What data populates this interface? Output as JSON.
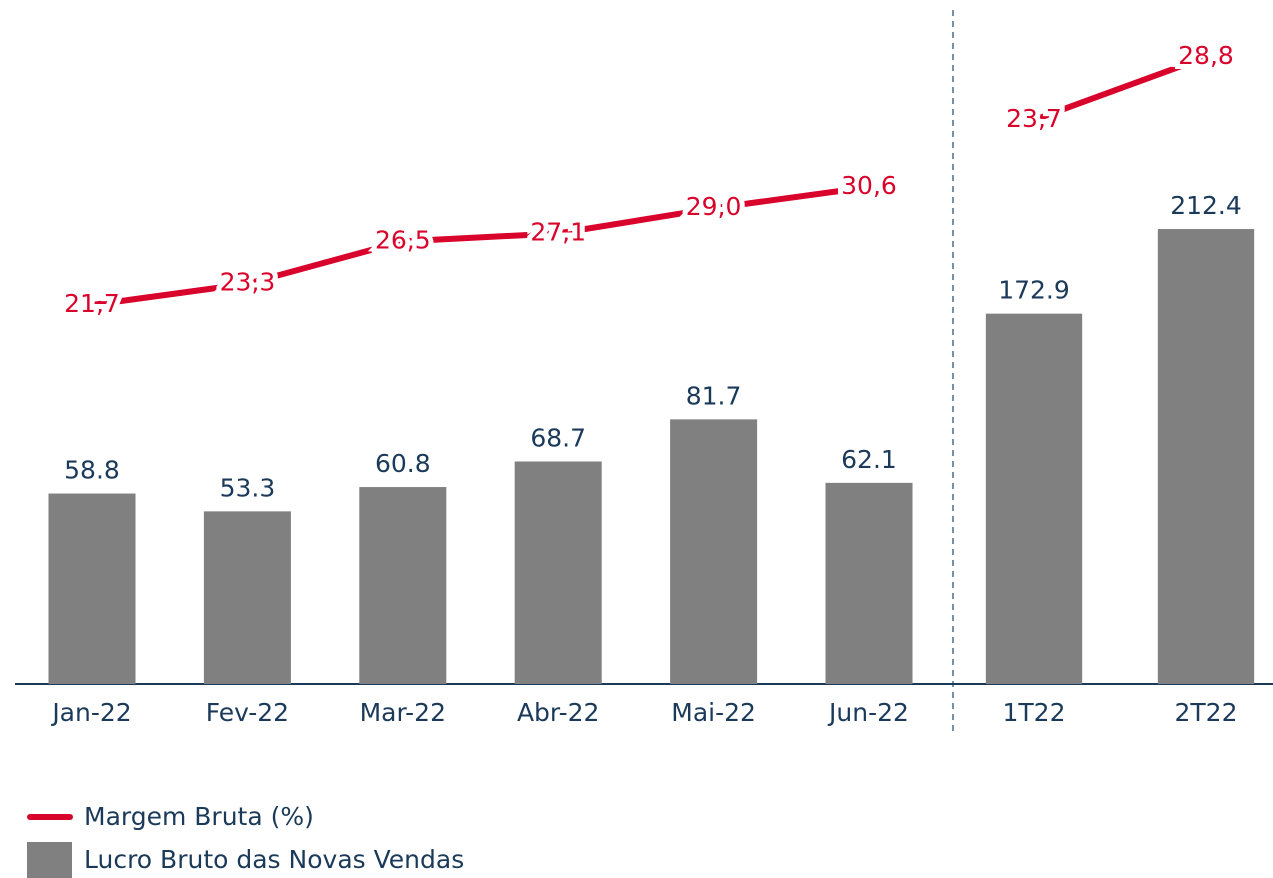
{
  "chart_data": [
    {
      "type": "bar",
      "categories": [
        "Jan-22",
        "Fev-22",
        "Mar-22",
        "Abr-22",
        "Mai-22",
        "Jun-22"
      ],
      "ylim": [
        0,
        205
      ],
      "y2lim": [
        -6.9,
        43.2
      ],
      "series": [
        {
          "name": "Lucro Bruto das Novas Vendas",
          "color": "#808080",
          "values": [
            58.8,
            53.3,
            60.8,
            68.7,
            81.7,
            62.1
          ]
        },
        {
          "name": "Margem Bruta (%)",
          "color": "#d9042b",
          "type": "line",
          "axis": "y2",
          "values": [
            21.7,
            23.3,
            26.5,
            27.1,
            29.0,
            30.6
          ],
          "value_labels": [
            "21,7",
            "23,3",
            "26,5",
            "27,1",
            "29,0",
            "30,6"
          ]
        }
      ]
    },
    {
      "type": "bar",
      "categories": [
        "1T22",
        "2T22"
      ],
      "ylim": [
        0,
        310
      ],
      "y2lim": [
        -22,
        31.8
      ],
      "series": [
        {
          "color": "#808080",
          "values": [
            172.9,
            212.4
          ]
        },
        {
          "color": "#d9042b",
          "type": "line",
          "axis": "y2",
          "values": [
            23.7,
            28.8
          ],
          "value_labels": [
            "23,7",
            "28,8"
          ]
        }
      ]
    }
  ]
}
